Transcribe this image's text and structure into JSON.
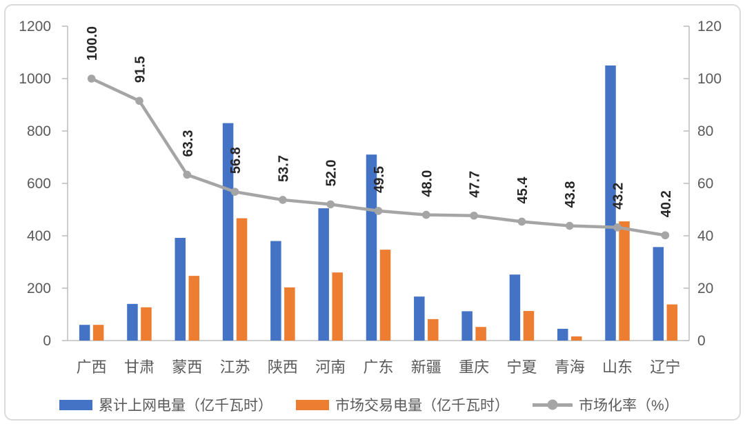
{
  "chart_data": {
    "type": "bar",
    "subtype": "combo-bar-line-dual-axis",
    "categories": [
      "广西",
      "甘肃",
      "蒙西",
      "江苏",
      "陕西",
      "河南",
      "广东",
      "新疆",
      "重庆",
      "宁夏",
      "青海",
      "山东",
      "辽宁"
    ],
    "series": [
      {
        "name": "累计上网电量（亿千瓦时）",
        "type": "bar",
        "axis": "left",
        "color": "#4472C4",
        "values": [
          60,
          140,
          392,
          830,
          380,
          505,
          710,
          168,
          112,
          252,
          45,
          1050,
          357
        ]
      },
      {
        "name": "市场交易电量（亿千瓦时）",
        "type": "bar",
        "axis": "left",
        "color": "#ED7D31",
        "values": [
          60,
          127,
          247,
          467,
          203,
          260,
          347,
          82,
          52,
          113,
          16,
          455,
          138
        ]
      },
      {
        "name": "市场化率（%）",
        "type": "line",
        "axis": "right",
        "color": "#A5A5A5",
        "values": [
          100.0,
          91.5,
          63.3,
          56.8,
          53.7,
          52.0,
          49.5,
          48.0,
          47.7,
          45.4,
          43.8,
          43.2,
          40.2
        ],
        "point_labels": [
          "100.0",
          "91.5",
          "63.3",
          "56.8",
          "53.7",
          "52.0",
          "49.5",
          "48.0",
          "47.7",
          "45.4",
          "43.8",
          "43.2",
          "40.2"
        ]
      }
    ],
    "left_axis": {
      "min": 0,
      "max": 1200,
      "step": 200,
      "tick_labels": [
        "0",
        "200",
        "400",
        "600",
        "800",
        "1000",
        "1200"
      ]
    },
    "right_axis": {
      "min": 0,
      "max": 120,
      "step": 20,
      "tick_labels": [
        "0",
        "20",
        "40",
        "60",
        "80",
        "100",
        "120"
      ]
    },
    "grid": false,
    "legend_position": "bottom",
    "styles": {
      "axis_line_color": "#BFBFBF",
      "axis_text_color": "#595959",
      "data_label_color": "#262626"
    }
  }
}
